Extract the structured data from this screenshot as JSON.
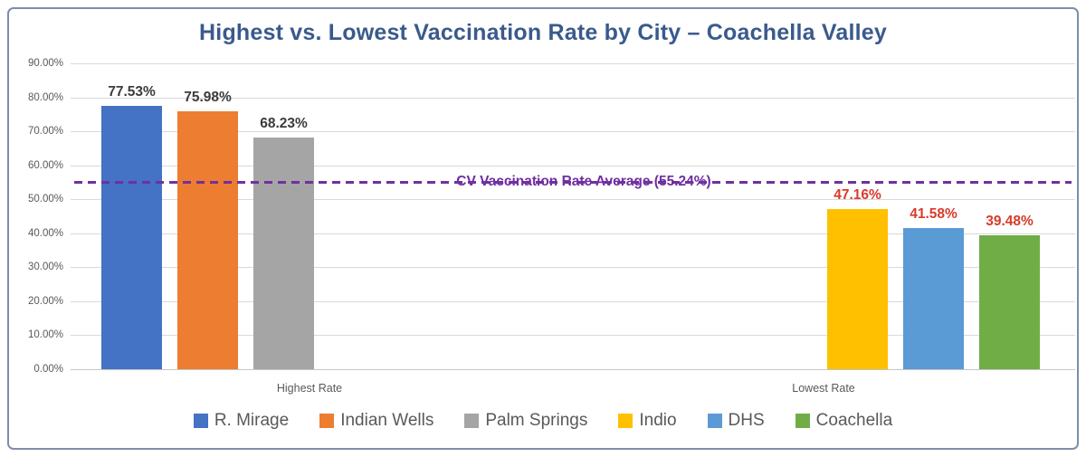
{
  "title": "Highest vs. Lowest Vaccination Rate by City – Coachella Valley",
  "chart_data": {
    "type": "bar",
    "title": "Highest vs. Lowest Vaccination Rate by City – Coachella Valley",
    "categories": [
      "Highest Rate",
      "Lowest Rate"
    ],
    "y_ticks": [
      "0.00%",
      "10.00%",
      "20.00%",
      "30.00%",
      "40.00%",
      "50.00%",
      "60.00%",
      "70.00%",
      "80.00%",
      "90.00%"
    ],
    "ylim": [
      0,
      90
    ],
    "grid": true,
    "legend_position": "bottom",
    "series": [
      {
        "name": "R. Mirage",
        "category": "Highest Rate",
        "value": 77.53,
        "label": "77.53%",
        "color": "#4472c4",
        "label_color": "#3b3b3b"
      },
      {
        "name": "Indian Wells",
        "category": "Highest Rate",
        "value": 75.98,
        "label": "75.98%",
        "color": "#ed7d31",
        "label_color": "#3b3b3b"
      },
      {
        "name": "Palm Springs",
        "category": "Highest Rate",
        "value": 68.23,
        "label": "68.23%",
        "color": "#a5a5a5",
        "label_color": "#3b3b3b"
      },
      {
        "name": "Indio",
        "category": "Lowest Rate",
        "value": 47.16,
        "label": "47.16%",
        "color": "#ffc000",
        "label_color": "#d93a2b"
      },
      {
        "name": "DHS",
        "category": "Lowest Rate",
        "value": 41.58,
        "label": "41.58%",
        "color": "#5b9bd5",
        "label_color": "#d93a2b"
      },
      {
        "name": "Coachella",
        "category": "Lowest Rate",
        "value": 39.48,
        "label": "39.48%",
        "color": "#70ad47",
        "label_color": "#d93a2b"
      }
    ],
    "average_line": {
      "value": 55.24,
      "label": "CV Vaccination Rate Average (55.24%)",
      "color": "#7030a0",
      "style": "dashed"
    },
    "legend": [
      {
        "name": "R. Mirage",
        "color": "#4472c4"
      },
      {
        "name": "Indian Wells",
        "color": "#ed7d31"
      },
      {
        "name": "Palm Springs",
        "color": "#a5a5a5"
      },
      {
        "name": "Indio",
        "color": "#ffc000"
      },
      {
        "name": "DHS",
        "color": "#5b9bd5"
      },
      {
        "name": "Coachella",
        "color": "#70ad47"
      }
    ]
  },
  "colors": {
    "title": "#3a5a8c",
    "axis_text": "#595959",
    "gridline": "#d9d9d9",
    "border": "#7e8ea8",
    "average_line": "#7030a0",
    "high_label": "#3b3b3b",
    "low_label": "#d93a2b"
  }
}
